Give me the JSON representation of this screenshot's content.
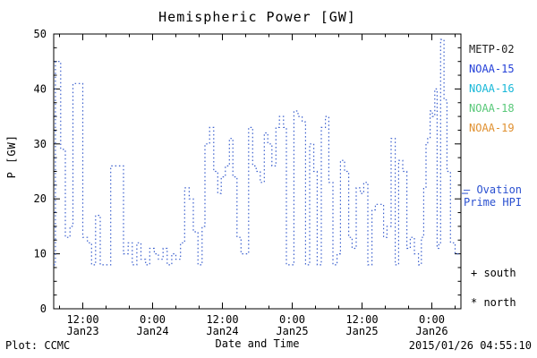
{
  "annotations": {
    "ovation_line1": "— Ovation",
    "ovation_line2": "Prime HPI",
    "ovation_color": "#2a50d0",
    "south": "+ south",
    "north": "* north"
  },
  "footer": {
    "left": "Plot: CCMC",
    "right": "2015/01/26 04:55:10"
  },
  "legend": {
    "items": [
      {
        "label": "METP-02",
        "color": "#222222"
      },
      {
        "label": "NOAA-15",
        "color": "#2440d8"
      },
      {
        "label": "NOAA-16",
        "color": "#18b8d8"
      },
      {
        "label": "NOAA-18",
        "color": "#58c878"
      },
      {
        "label": "NOAA-19",
        "color": "#e09030"
      }
    ]
  },
  "chart_data": {
    "type": "line",
    "title": "Hemispheric Power [GW]",
    "xlabel": "Date and Time",
    "ylabel": "P [GW]",
    "series_name": "Ovation Prime HPI",
    "line_style": "dotted step",
    "color": "#3a5fcd",
    "x_unit": "hours since 2015-01-23 00:00",
    "xlim": [
      7,
      77
    ],
    "ylim": [
      0,
      50
    ],
    "grid": false,
    "y_ticks": [
      0,
      10,
      20,
      30,
      40,
      50
    ],
    "x_ticks": [
      {
        "t": 12,
        "time": "12:00",
        "date": "Jan23"
      },
      {
        "t": 24,
        "time": "0:00",
        "date": "Jan24"
      },
      {
        "t": 36,
        "time": "12:00",
        "date": "Jan24"
      },
      {
        "t": 48,
        "time": "0:00",
        "date": "Jan25"
      },
      {
        "t": 60,
        "time": "12:00",
        "date": "Jan25"
      },
      {
        "t": 72,
        "time": "0:00",
        "date": "Jan26"
      }
    ],
    "points": [
      [
        7,
        8
      ],
      [
        7.3,
        45
      ],
      [
        8.2,
        29
      ],
      [
        9,
        13
      ],
      [
        9.8,
        15
      ],
      [
        10.3,
        41
      ],
      [
        11.3,
        41
      ],
      [
        12,
        13
      ],
      [
        12.8,
        12
      ],
      [
        13.5,
        8
      ],
      [
        14.2,
        17
      ],
      [
        15,
        8
      ],
      [
        16,
        8
      ],
      [
        16.8,
        26
      ],
      [
        18.3,
        26
      ],
      [
        19,
        10
      ],
      [
        19.8,
        12
      ],
      [
        20.5,
        8
      ],
      [
        21.3,
        12
      ],
      [
        22,
        9
      ],
      [
        22.8,
        8
      ],
      [
        23.5,
        11
      ],
      [
        24.3,
        10
      ],
      [
        25,
        9
      ],
      [
        25.8,
        11
      ],
      [
        26.5,
        8
      ],
      [
        27.3,
        10
      ],
      [
        28,
        9
      ],
      [
        28.8,
        12
      ],
      [
        29.5,
        22
      ],
      [
        30.3,
        20
      ],
      [
        31,
        14
      ],
      [
        31.8,
        8
      ],
      [
        32.5,
        15
      ],
      [
        33,
        30
      ],
      [
        33.8,
        33
      ],
      [
        34.5,
        25
      ],
      [
        35.2,
        21
      ],
      [
        35.8,
        24
      ],
      [
        36.5,
        26
      ],
      [
        37.2,
        31
      ],
      [
        37.8,
        24
      ],
      [
        38.5,
        13
      ],
      [
        39.2,
        10
      ],
      [
        39.8,
        10
      ],
      [
        40.5,
        33
      ],
      [
        41.2,
        26
      ],
      [
        41.8,
        25
      ],
      [
        42.5,
        23
      ],
      [
        43.2,
        32
      ],
      [
        43.8,
        30
      ],
      [
        44.5,
        26
      ],
      [
        45.2,
        33
      ],
      [
        45.8,
        35
      ],
      [
        46.5,
        33
      ],
      [
        47,
        8
      ],
      [
        47.8,
        8
      ],
      [
        48.3,
        36
      ],
      [
        49,
        35
      ],
      [
        49.7,
        34
      ],
      [
        50.3,
        8
      ],
      [
        51,
        30
      ],
      [
        51.7,
        25
      ],
      [
        52.3,
        8
      ],
      [
        53,
        33
      ],
      [
        53.7,
        35
      ],
      [
        54.3,
        23
      ],
      [
        55,
        8
      ],
      [
        55.7,
        10
      ],
      [
        56.3,
        27
      ],
      [
        57,
        25
      ],
      [
        57.7,
        13
      ],
      [
        58.3,
        11
      ],
      [
        59,
        22
      ],
      [
        59.7,
        21
      ],
      [
        60.3,
        23
      ],
      [
        61,
        8
      ],
      [
        61.7,
        18
      ],
      [
        62.3,
        19
      ],
      [
        63,
        19
      ],
      [
        63.7,
        13
      ],
      [
        64.3,
        15
      ],
      [
        65,
        31
      ],
      [
        65.7,
        8
      ],
      [
        66.3,
        27
      ],
      [
        67,
        25
      ],
      [
        67.7,
        11
      ],
      [
        68.3,
        13
      ],
      [
        69,
        10
      ],
      [
        69.7,
        8
      ],
      [
        70.2,
        13
      ],
      [
        70.6,
        22
      ],
      [
        71,
        30
      ],
      [
        71.3,
        31
      ],
      [
        71.7,
        36
      ],
      [
        72.1,
        35
      ],
      [
        72.5,
        40
      ],
      [
        72.9,
        11
      ],
      [
        73.2,
        12
      ],
      [
        73.5,
        49
      ],
      [
        74.1,
        38
      ],
      [
        74.6,
        25
      ],
      [
        75.2,
        12
      ],
      [
        76,
        10
      ],
      [
        77,
        10
      ]
    ]
  }
}
